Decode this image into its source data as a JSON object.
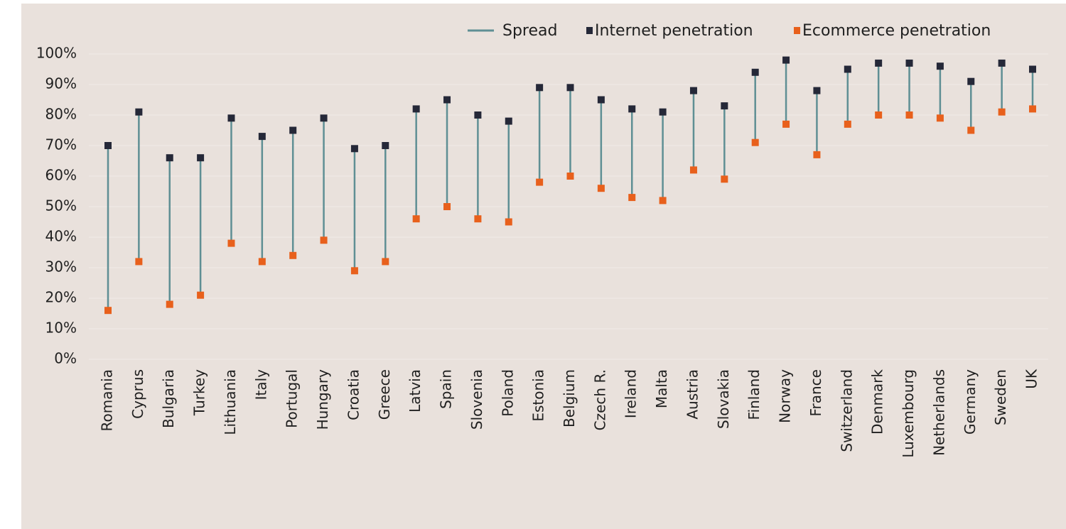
{
  "chart_data": {
    "type": "dot-range",
    "categories": [
      "Romania",
      "Cyprus",
      "Bulgaria",
      "Turkey",
      "Lithuania",
      "Italy",
      "Portugal",
      "Hungary",
      "Croatia",
      "Greece",
      "Latvia",
      "Spain",
      "Slovenia",
      "Poland",
      "Estonia",
      "Belgium",
      "Czech R.",
      "Ireland",
      "Malta",
      "Austria",
      "Slovakia",
      "Finland",
      "Norway",
      "France",
      "Switzerland",
      "Denmark",
      "Luxembourg",
      "Netherlands",
      "Germany",
      "Sweden",
      "UK"
    ],
    "spread": {
      "name": "Spread",
      "color": "#5f8f94"
    },
    "series": [
      {
        "name": "Internet penetration",
        "color": "#252838",
        "values": [
          70,
          81,
          66,
          66,
          79,
          73,
          75,
          79,
          69,
          70,
          82,
          85,
          80,
          78,
          89,
          89,
          85,
          82,
          81,
          88,
          83,
          94,
          98,
          88,
          95,
          97,
          97,
          96,
          91,
          97,
          95
        ]
      },
      {
        "name": "Ecommerce penetration",
        "color": "#e8601c",
        "values": [
          16,
          32,
          18,
          21,
          38,
          32,
          34,
          39,
          29,
          32,
          46,
          50,
          46,
          45,
          58,
          60,
          56,
          53,
          52,
          62,
          59,
          71,
          77,
          67,
          77,
          80,
          80,
          79,
          75,
          81,
          82
        ]
      }
    ],
    "ylim": [
      0,
      100
    ],
    "yticks": [
      {
        "value": 0,
        "label": "0%"
      },
      {
        "value": 10,
        "label": "10%"
      },
      {
        "value": 20,
        "label": "20%"
      },
      {
        "value": 30,
        "label": "30%"
      },
      {
        "value": 40,
        "label": "40%"
      },
      {
        "value": 50,
        "label": "50%"
      },
      {
        "value": 60,
        "label": "60%"
      },
      {
        "value": 70,
        "label": "70%"
      },
      {
        "value": 80,
        "label": "80%"
      },
      {
        "value": 90,
        "label": "90%"
      },
      {
        "value": 100,
        "label": "100%"
      }
    ],
    "grid": true
  }
}
